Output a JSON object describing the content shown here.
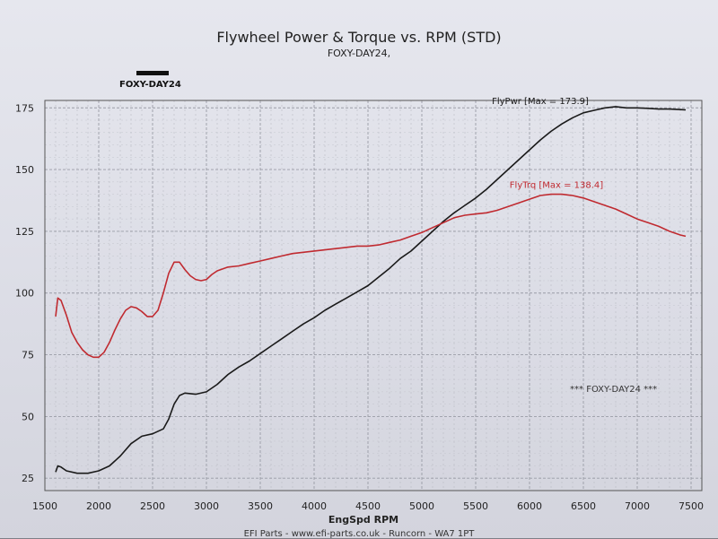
{
  "chart_data": {
    "type": "line",
    "title": "Flywheel Power & Torque vs. RPM (STD)",
    "subtitle": "FOXY-DAY24,",
    "xlabel": "EngSpd RPM",
    "ylabel": "",
    "xlim": [
      1500,
      7600
    ],
    "ylim": [
      20,
      178
    ],
    "xticks": [
      1500,
      2000,
      2500,
      3000,
      3500,
      4000,
      4500,
      5000,
      5500,
      6000,
      6500,
      7000,
      7500
    ],
    "xtick_labels": [
      "1500",
      "2000",
      "2500",
      "3000",
      "3500",
      "4000",
      "4500",
      "5000",
      "5500",
      "6000",
      "6500",
      "7000",
      "7500"
    ],
    "yticks": [
      25,
      50,
      75,
      100,
      125,
      150,
      175
    ],
    "ytick_labels": [
      "25",
      "50",
      "75",
      "100",
      "125",
      "150",
      "175"
    ],
    "grid": true,
    "legend": {
      "label": "FOXY-DAY24",
      "placement": "top-left"
    },
    "series": [
      {
        "name": "FlyPwr",
        "color": "#1a1a1a",
        "x": [
          1600,
          1620,
          1650,
          1700,
          1800,
          1900,
          2000,
          2100,
          2200,
          2300,
          2400,
          2500,
          2600,
          2650,
          2700,
          2750,
          2800,
          2900,
          3000,
          3100,
          3200,
          3300,
          3400,
          3500,
          3600,
          3700,
          3800,
          3900,
          4000,
          4100,
          4200,
          4300,
          4400,
          4500,
          4600,
          4700,
          4800,
          4900,
          5000,
          5100,
          5200,
          5300,
          5400,
          5500,
          5600,
          5700,
          5800,
          5900,
          6000,
          6100,
          6200,
          6300,
          6400,
          6500,
          6600,
          6700,
          6800,
          6900,
          7000,
          7100,
          7200,
          7300,
          7400,
          7450
        ],
        "y": [
          27.5,
          30,
          29.5,
          28,
          27,
          27,
          28,
          30,
          34,
          39,
          42,
          43,
          45,
          49,
          55,
          58.5,
          59.5,
          59,
          60,
          63,
          67,
          70,
          72.5,
          75.5,
          78.5,
          81.5,
          84.5,
          87.5,
          90,
          93,
          95.5,
          98,
          100.5,
          103,
          106.5,
          110,
          114,
          117,
          121,
          125,
          129,
          132.5,
          135.5,
          138.5,
          142,
          146,
          150,
          154,
          158,
          162,
          165.5,
          168.5,
          171,
          173,
          174,
          175,
          175.5,
          175,
          175,
          174.8,
          174.5,
          174.5,
          174.3,
          174.2
        ]
      },
      {
        "name": "FlyTrq",
        "color": "#c02a30",
        "x": [
          1600,
          1620,
          1650,
          1700,
          1750,
          1800,
          1850,
          1900,
          1950,
          2000,
          2050,
          2100,
          2150,
          2200,
          2250,
          2300,
          2350,
          2400,
          2450,
          2500,
          2550,
          2600,
          2650,
          2700,
          2750,
          2800,
          2850,
          2900,
          2950,
          3000,
          3050,
          3100,
          3200,
          3300,
          3400,
          3500,
          3600,
          3700,
          3800,
          3900,
          4000,
          4100,
          4200,
          4300,
          4400,
          4500,
          4600,
          4700,
          4800,
          4900,
          5000,
          5100,
          5200,
          5300,
          5400,
          5500,
          5600,
          5700,
          5800,
          5900,
          6000,
          6100,
          6200,
          6300,
          6400,
          6500,
          6600,
          6700,
          6800,
          6900,
          7000,
          7100,
          7200,
          7300,
          7400,
          7450
        ],
        "y": [
          90.5,
          98,
          97,
          91,
          84,
          80,
          77,
          75,
          74,
          74,
          76,
          80,
          85,
          89.5,
          93,
          94.5,
          94,
          92.5,
          90.5,
          90.5,
          93,
          100,
          108,
          112.5,
          112.5,
          109.5,
          107,
          105.5,
          105,
          105.5,
          107.5,
          109,
          110.5,
          111,
          112,
          113,
          114,
          115,
          116,
          116.5,
          117,
          117.5,
          118,
          118.5,
          119,
          119,
          119.5,
          120.5,
          121.5,
          123,
          124.5,
          126.5,
          128.5,
          130.5,
          131.5,
          132,
          132.5,
          133.5,
          135,
          136.5,
          138,
          139.5,
          140,
          140,
          139.5,
          138.5,
          137,
          135.5,
          134,
          132,
          130,
          128.5,
          127,
          125,
          123.5,
          123
        ]
      }
    ],
    "annotations": [
      {
        "text": "FlyPwr [Max = 173.9]",
        "series": "FlyPwr"
      },
      {
        "text": "FlyTrq [Max = 138.4]",
        "series": "FlyTrq"
      },
      {
        "text": "*** FOXY-DAY24 ***",
        "series": ""
      }
    ]
  },
  "footer": "EFI Parts - www.efi-parts.co.uk - Runcorn - WA7 1PT"
}
